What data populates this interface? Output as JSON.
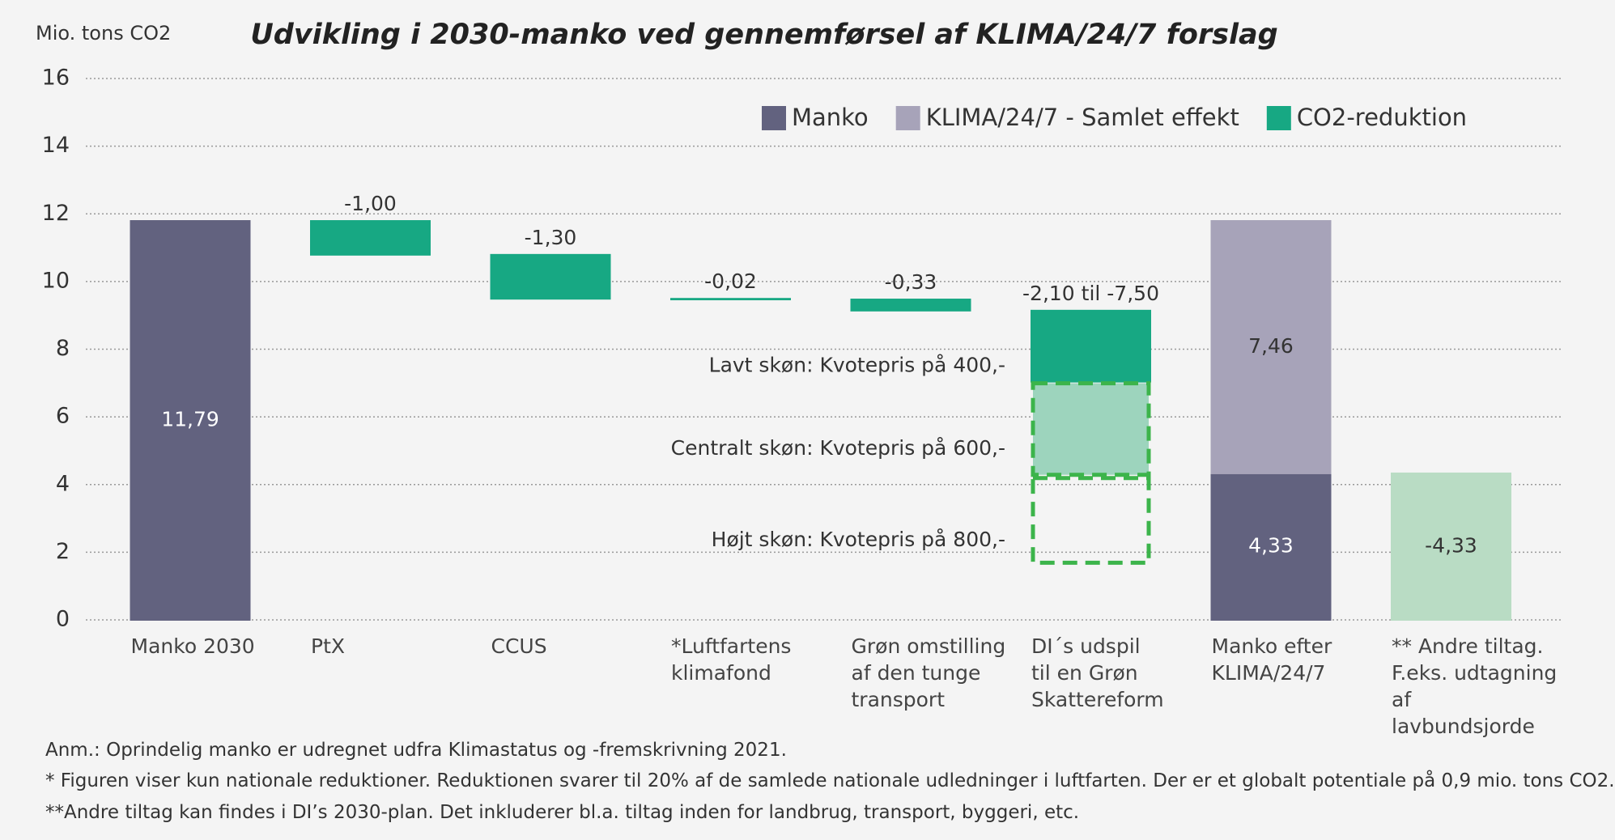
{
  "chart_data": {
    "type": "waterfall",
    "title": "Udvikling i 2030-manko ved gennemførsel af KLIMA/24/7 forslag",
    "y_label": "Mio. tons  CO2",
    "categories": [
      "Manko 2030",
      "PtX",
      "CCUS",
      "*Luftfartens\nklimafond",
      "Grøn omstilling\naf den tunge\ntransport",
      "DI´s udspil\ntil en Grøn\nSkattereform",
      "Manko efter\nKLIMA/24/7",
      "** Andre tiltag.\nF.eks. udtagning af\nlavbundsjorde"
    ],
    "series": [
      {
        "name": "Manko",
        "color": "#62627f",
        "measure": "absolute",
        "values": [
          11.79,
          null,
          null,
          null,
          null,
          null,
          4.33,
          null
        ],
        "value_labels": [
          "11,79",
          null,
          null,
          null,
          null,
          null,
          "4,33",
          null
        ]
      },
      {
        "name": "KLIMA/24/7 - Samlet effekt",
        "color": "#a7a3b9",
        "measure": "stacked",
        "values": [
          null,
          null,
          null,
          null,
          null,
          null,
          7.46,
          null
        ],
        "value_labels": [
          null,
          null,
          null,
          null,
          null,
          null,
          "7,46",
          null
        ]
      },
      {
        "name": "CO2-reduktion",
        "color": "#17a883",
        "measure": "relative",
        "values": [
          null,
          -1.0,
          -1.3,
          -0.02,
          -0.33,
          -2.1,
          null,
          -4.33
        ],
        "value_labels": [
          null,
          "-1,00",
          "-1,30",
          "-0,02",
          "-0,33",
          "-2,10 til -7,50",
          null,
          "-4,33"
        ],
        "point_colors": [
          null,
          null,
          null,
          null,
          null,
          null,
          null,
          "#b9dcc4"
        ]
      }
    ],
    "scenario_category": 5,
    "scenarios": [
      {
        "label": "Lavt skøn: Kvotepris på 400,-"
      },
      {
        "label": "Centralt skøn: Kvotepris på 600,-",
        "value": -2.8,
        "color": "#9dd4bd"
      },
      {
        "label": "Højt skøn: Kvotepris på 800,-",
        "value": -2.6,
        "color": "none"
      }
    ],
    "scenario_border": "#3cb44b",
    "ylim": [
      0,
      16
    ],
    "yticks": [
      0,
      2,
      4,
      6,
      8,
      10,
      12,
      14,
      16
    ],
    "grid": true,
    "legend": "top-right",
    "notes": [
      "Anm.: Oprindelig manko er udregnet udfra Klimastatus og -fremskrivning 2021.",
      "* Figuren viser kun nationale reduktioner. Reduktionen svarer til 20% af de samlede nationale udledninger i luftfarten. Der er et globalt potentiale på 0,9 mio. tons CO2.",
      "**Andre tiltag kan findes i DI’s 2030-plan. Det inkluderer bl.a. tiltag inden for landbrug, transport, byggeri, etc."
    ]
  }
}
